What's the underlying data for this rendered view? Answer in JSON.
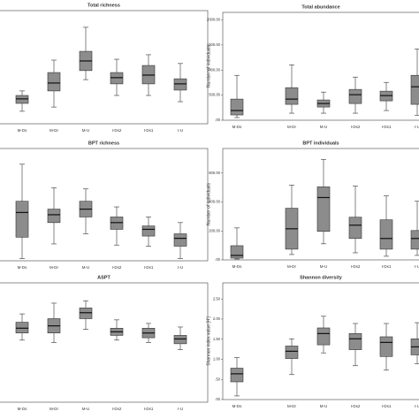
{
  "chart_data": [
    {
      "type": "box",
      "title": "Total richness",
      "categories": [
        "M-Ds",
        "M-Dr",
        "M-U",
        "I-Ds2",
        "I-Ds1",
        "I-U"
      ],
      "color": "#8c8c8c",
      "ylim": [
        0,
        40
      ],
      "values": [
        {
          "min": 4.4,
          "q1": 7.2,
          "median": 8.8,
          "q3": 10,
          "max": 11.6
        },
        {
          "min": 5.9,
          "q1": 11.6,
          "median": 14.4,
          "q3": 18.1,
          "max": 22.5
        },
        {
          "min": 15.6,
          "q1": 18.8,
          "median": 22.2,
          "q3": 25.6,
          "max": 34.1
        },
        {
          "min": 10,
          "q1": 14.1,
          "median": 16.3,
          "q3": 18.1,
          "max": 22.8
        },
        {
          "min": 10,
          "q1": 14.1,
          "median": 17.2,
          "q3": 20.6,
          "max": 24.4
        },
        {
          "min": 7.8,
          "q1": 11.9,
          "median": 14.1,
          "q3": 15.9,
          "max": 21.3
        }
      ]
    },
    {
      "type": "box",
      "title": "Total abundance",
      "y_label": "Number of individuals",
      "categories": [
        "M-Ds",
        "M-Dr",
        "M-U",
        "I-Ds2",
        "I-Ds1",
        "I-U"
      ],
      "color": "#8c8c8c",
      "ylim": [
        0,
        2150
      ],
      "yticks": [
        {
          "value": 0,
          "label": ".00"
        },
        {
          "value": 500,
          "label": "500.00"
        },
        {
          "value": 1000,
          "label": "1000.00"
        },
        {
          "value": 1500,
          "label": "1500.00"
        },
        {
          "value": 2000,
          "label": "2000.00"
        }
      ],
      "values": [
        {
          "min": 53,
          "q1": 105,
          "median": 193,
          "q3": 421,
          "max": 895
        },
        {
          "min": 140,
          "q1": 316,
          "median": 421,
          "q3": 649,
          "max": 1105
        },
        {
          "min": 140,
          "q1": 263,
          "median": 333,
          "q3": 404,
          "max": 561
        },
        {
          "min": 140,
          "q1": 333,
          "median": 509,
          "q3": 614,
          "max": 860
        },
        {
          "min": 193,
          "q1": 386,
          "median": 491,
          "q3": 579,
          "max": 754
        },
        {
          "min": 100,
          "q1": 316,
          "median": 667,
          "q3": 895,
          "max": 1421
        }
      ]
    },
    {
      "type": "box",
      "title": "BPT richness",
      "categories": [
        "M-Ds",
        "M-Dr",
        "M-U",
        "I-Ds2",
        "I-Ds1",
        "I-U"
      ],
      "color": "#8c8c8c",
      "ylim": [
        0,
        10
      ],
      "values": [
        {
          "min": 0.2,
          "q1": 2.1,
          "median": 4.3,
          "q3": 5.3,
          "max": 8.6
        },
        {
          "min": 1.5,
          "q1": 3.4,
          "median": 4.1,
          "q3": 4.6,
          "max": 6.5
        },
        {
          "min": 2.4,
          "q1": 3.9,
          "median": 4.6,
          "q3": 5.3,
          "max": 6.4
        },
        {
          "min": 1.4,
          "q1": 2.8,
          "median": 3.4,
          "q3": 3.9,
          "max": 4.8
        },
        {
          "min": 1.3,
          "q1": 2.2,
          "median": 2.8,
          "q3": 3.1,
          "max": 3.9
        },
        {
          "min": 0.2,
          "q1": 1.3,
          "median": 2.0,
          "q3": 2.4,
          "max": 3.4
        }
      ]
    },
    {
      "type": "box",
      "title": "BPT individuals",
      "y_label": "Number of individuals",
      "categories": [
        "M-Ds",
        "M-Dr",
        "M-U",
        "I-Ds2",
        "I-Ds1",
        "I-U"
      ],
      "color": "#8c8c8c",
      "ylim": [
        0,
        770
      ],
      "yticks": [
        {
          "value": 0,
          "label": ".00"
        },
        {
          "value": 200,
          "label": "200.00"
        },
        {
          "value": 400,
          "label": "400.00"
        },
        {
          "value": 600,
          "label": "600.00"
        }
      ],
      "values": [
        {
          "min": 6,
          "q1": 12,
          "median": 31,
          "q3": 98,
          "max": 221
        },
        {
          "min": 37,
          "q1": 74,
          "median": 215,
          "q3": 357,
          "max": 517
        },
        {
          "min": 111,
          "q1": 197,
          "median": 431,
          "q3": 505,
          "max": 695
        },
        {
          "min": 49,
          "q1": 148,
          "median": 240,
          "q3": 295,
          "max": 511
        },
        {
          "min": 25,
          "q1": 74,
          "median": 148,
          "q3": 277,
          "max": 443
        },
        {
          "min": 31,
          "q1": 74,
          "median": 148,
          "q3": 203,
          "max": 406
        }
      ]
    },
    {
      "type": "box",
      "title": "ASPT",
      "categories": [
        "M-Ds",
        "M-Dr",
        "M-U",
        "I-Ds2",
        "I-Ds1",
        "I-U"
      ],
      "color": "#8c8c8c",
      "ylim": [
        0,
        10
      ],
      "values": [
        {
          "min": 5.2,
          "q1": 5.8,
          "median": 6.2,
          "q3": 6.7,
          "max": 7.4
        },
        {
          "min": 5.0,
          "q1": 5.8,
          "median": 6.4,
          "q3": 7.0,
          "max": 8.3
        },
        {
          "min": 6.1,
          "q1": 7.0,
          "median": 7.5,
          "q3": 7.9,
          "max": 8.5
        },
        {
          "min": 5.2,
          "q1": 5.6,
          "median": 5.9,
          "q3": 6.2,
          "max": 6.9
        },
        {
          "min": 5.0,
          "q1": 5.4,
          "median": 5.8,
          "q3": 6.2,
          "max": 6.6
        },
        {
          "min": 4.4,
          "q1": 4.9,
          "median": 5.3,
          "q3": 5.6,
          "max": 6.3
        }
      ]
    },
    {
      "type": "box",
      "title": "Shannon diversity",
      "y_label": "Shannon index value [H']",
      "categories": [
        "M-Ds",
        "M-Dr",
        "M-U",
        "I-Ds2",
        "I-Ds1",
        "I-U"
      ],
      "color": "#8c8c8c",
      "ylim": [
        0,
        2.9
      ],
      "yticks": [
        {
          "value": 0,
          "label": ".00"
        },
        {
          "value": 0.5,
          "label": ".50"
        },
        {
          "value": 1,
          "label": "1.00"
        },
        {
          "value": 1.5,
          "label": "1.50"
        },
        {
          "value": 2,
          "label": "2.00"
        },
        {
          "value": 2.5,
          "label": "2.50"
        }
      ],
      "values": [
        {
          "min": 0.09,
          "q1": 0.44,
          "median": 0.64,
          "q3": 0.78,
          "max": 1.04
        },
        {
          "min": 0.62,
          "q1": 1.02,
          "median": 1.2,
          "q3": 1.33,
          "max": 1.51
        },
        {
          "min": 1.16,
          "q1": 1.36,
          "median": 1.64,
          "q3": 1.78,
          "max": 2.07
        },
        {
          "min": 0.84,
          "q1": 1.24,
          "median": 1.51,
          "q3": 1.64,
          "max": 1.89
        },
        {
          "min": 0.73,
          "q1": 1.07,
          "median": 1.42,
          "q3": 1.56,
          "max": 1.89
        },
        {
          "min": 0.89,
          "q1": 1.11,
          "median": 1.31,
          "q3": 1.51,
          "max": 1.91
        }
      ]
    }
  ]
}
